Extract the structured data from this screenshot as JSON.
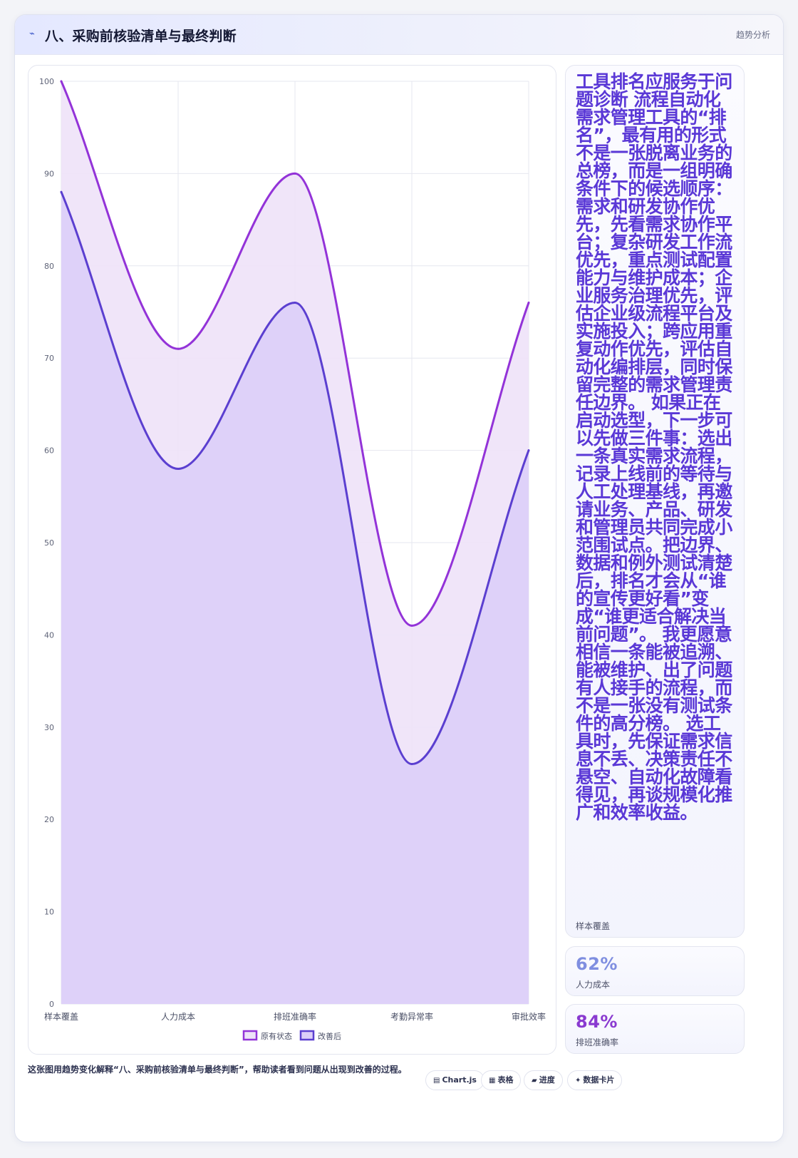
{
  "header": {
    "icon": "chart-line-icon",
    "icon_glyph": "⌁",
    "title": "八、采购前核验清单与最终判断",
    "right_label": "趋势分析"
  },
  "summary": {
    "text": "工具排名应服务于问题诊断 流程自动化需求管理工具的“排名”，最有用的形式不是一张脱离业务的总榜，而是一组明确条件下的候选顺序：需求和研发协作优先，先看需求协作平台；复杂研发工作流优先，重点测试配置能力与维护成本；企业服务治理优先，评估企业级流程平台及实施投入；跨应用重复动作优先，评估自动化编排层，同时保留完整的需求管理责任边界。 如果正在启动选型，下一步可以先做三件事：选出一条真实需求流程，记录上线前的等待与人工处理基线，再邀请业务、产品、研发和管理员共同完成小范围试点。把边界、数据和例外测试清楚后，排名才会从“谁的宣传更好看”变成“谁更适合解决当前问题”。 我更愿意相信一条能被追溯、能被维护、出了问题有人接手的流程，而不是一张没有测试条件的高分榜。 选工具时，先保证需求信息不丢、决策责任不悬空、自动化故障看得见，再谈规模化推广和效率收益。",
    "label": "样本覆盖"
  },
  "kpis": [
    {
      "value": "62%",
      "label": "人力成本",
      "color": "#7f8ee0"
    },
    {
      "value": "84%",
      "label": "排班准确率",
      "color": "#8a3ad0"
    }
  ],
  "footer": {
    "text": "这张图用趋势变化解释“八、采购前核验清单与最终判断”，帮助读者看到问题从出现到改善的过程。",
    "tags": [
      {
        "icon": "chart-icon",
        "glyph": "▤",
        "label": "Chart.js"
      },
      {
        "icon": "table-icon",
        "glyph": "▦",
        "label": "表格"
      },
      {
        "icon": "progress-icon",
        "glyph": "▰",
        "label": "进度"
      },
      {
        "icon": "sparkle-icon",
        "glyph": "✦",
        "label": "数据卡片"
      }
    ]
  },
  "chart_data": {
    "type": "area",
    "categories": [
      "样本覆盖",
      "人力成本",
      "排班准确率",
      "考勤异常率",
      "审批效率"
    ],
    "series": [
      {
        "name": "原有状态",
        "values": [
          100,
          71,
          90,
          41,
          76
        ],
        "color": "#9333d8",
        "fill": "#eee2f8"
      },
      {
        "name": "改善后",
        "values": [
          88,
          58,
          76,
          26,
          60
        ],
        "color": "#5b3fd0",
        "fill": "#dccef8"
      }
    ],
    "ylim": [
      0,
      100
    ],
    "yticks": [
      0,
      10,
      20,
      30,
      40,
      50,
      60,
      70,
      80,
      90,
      100
    ],
    "grid": true,
    "legend": "bottom"
  }
}
